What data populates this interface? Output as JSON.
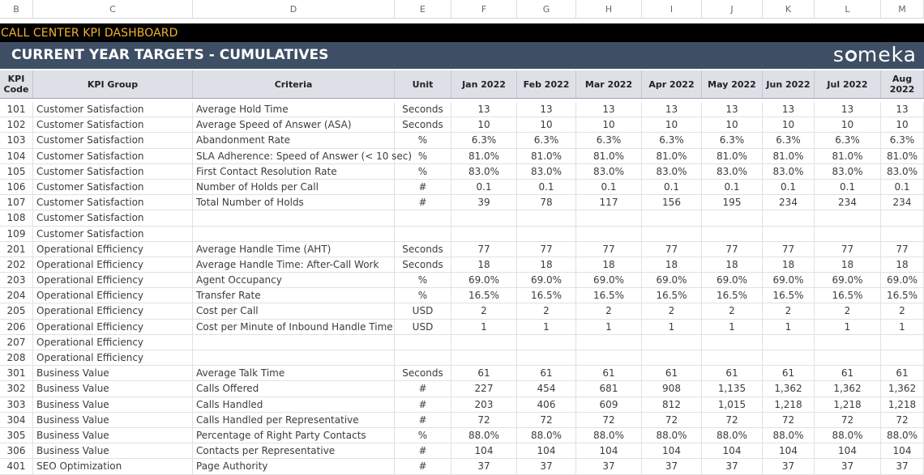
{
  "column_letters": [
    "B",
    "C",
    "D",
    "E",
    "F",
    "G",
    "H",
    "I",
    "J",
    "K",
    "L",
    "M"
  ],
  "banner": {
    "title": "CALL CENTER KPI DASHBOARD",
    "title_color": "#f2b329"
  },
  "section": {
    "title": "CURRENT YEAR TARGETS - CUMULATIVES",
    "logo_pre": "s",
    "logo_post": "meka",
    "bg": "#3e4e64"
  },
  "table": {
    "headers": {
      "code": "KPI Code",
      "group": "KPI Group",
      "criteria": "Criteria",
      "unit": "Unit",
      "months": [
        "Jan 2022",
        "Feb 2022",
        "Mar 2022",
        "Apr 2022",
        "May 2022",
        "Jun 2022",
        "Jul 2022",
        "Aug 2022"
      ]
    },
    "rows": [
      {
        "code": "101",
        "group": "Customer Satisfaction",
        "criteria": "Average Hold Time",
        "unit": "Seconds",
        "values": [
          "13",
          "13",
          "13",
          "13",
          "13",
          "13",
          "13",
          "13"
        ]
      },
      {
        "code": "102",
        "group": "Customer Satisfaction",
        "criteria": "Average Speed of Answer (ASA)",
        "unit": "Seconds",
        "values": [
          "10",
          "10",
          "10",
          "10",
          "10",
          "10",
          "10",
          "10"
        ]
      },
      {
        "code": "103",
        "group": "Customer Satisfaction",
        "criteria": "Abandonment Rate",
        "unit": "%",
        "values": [
          "6.3%",
          "6.3%",
          "6.3%",
          "6.3%",
          "6.3%",
          "6.3%",
          "6.3%",
          "6.3%"
        ]
      },
      {
        "code": "104",
        "group": "Customer Satisfaction",
        "criteria": "SLA Adherence: Speed of Answer (< 10 sec)",
        "unit": "%",
        "values": [
          "81.0%",
          "81.0%",
          "81.0%",
          "81.0%",
          "81.0%",
          "81.0%",
          "81.0%",
          "81.0%"
        ]
      },
      {
        "code": "105",
        "group": "Customer Satisfaction",
        "criteria": "First Contact Resolution Rate",
        "unit": "%",
        "values": [
          "83.0%",
          "83.0%",
          "83.0%",
          "83.0%",
          "83.0%",
          "83.0%",
          "83.0%",
          "83.0%"
        ]
      },
      {
        "code": "106",
        "group": "Customer Satisfaction",
        "criteria": "Number of Holds per Call",
        "unit": "#",
        "values": [
          "0.1",
          "0.1",
          "0.1",
          "0.1",
          "0.1",
          "0.1",
          "0.1",
          "0.1"
        ]
      },
      {
        "code": "107",
        "group": "Customer Satisfaction",
        "criteria": "Total Number of Holds",
        "unit": "#",
        "values": [
          "39",
          "78",
          "117",
          "156",
          "195",
          "234",
          "234",
          "234"
        ]
      },
      {
        "code": "108",
        "group": "Customer Satisfaction",
        "criteria": "",
        "unit": "",
        "values": [
          "",
          "",
          "",
          "",
          "",
          "",
          "",
          ""
        ]
      },
      {
        "code": "109",
        "group": "Customer Satisfaction",
        "criteria": "",
        "unit": "",
        "values": [
          "",
          "",
          "",
          "",
          "",
          "",
          "",
          ""
        ]
      },
      {
        "code": "201",
        "group": "Operational Efficiency",
        "criteria": "Average Handle Time (AHT)",
        "unit": "Seconds",
        "values": [
          "77",
          "77",
          "77",
          "77",
          "77",
          "77",
          "77",
          "77"
        ]
      },
      {
        "code": "202",
        "group": "Operational Efficiency",
        "criteria": "Average Handle Time: After-Call Work",
        "unit": "Seconds",
        "values": [
          "18",
          "18",
          "18",
          "18",
          "18",
          "18",
          "18",
          "18"
        ]
      },
      {
        "code": "203",
        "group": "Operational Efficiency",
        "criteria": "Agent Occupancy",
        "unit": "%",
        "values": [
          "69.0%",
          "69.0%",
          "69.0%",
          "69.0%",
          "69.0%",
          "69.0%",
          "69.0%",
          "69.0%"
        ]
      },
      {
        "code": "204",
        "group": "Operational Efficiency",
        "criteria": "Transfer Rate",
        "unit": "%",
        "values": [
          "16.5%",
          "16.5%",
          "16.5%",
          "16.5%",
          "16.5%",
          "16.5%",
          "16.5%",
          "16.5%"
        ]
      },
      {
        "code": "205",
        "group": "Operational Efficiency",
        "criteria": "Cost per Call",
        "unit": "USD",
        "values": [
          "2",
          "2",
          "2",
          "2",
          "2",
          "2",
          "2",
          "2"
        ]
      },
      {
        "code": "206",
        "group": "Operational Efficiency",
        "criteria": "Cost per Minute of Inbound Handle Time",
        "unit": "USD",
        "values": [
          "1",
          "1",
          "1",
          "1",
          "1",
          "1",
          "1",
          "1"
        ]
      },
      {
        "code": "207",
        "group": "Operational Efficiency",
        "criteria": "",
        "unit": "",
        "values": [
          "",
          "",
          "",
          "",
          "",
          "",
          "",
          ""
        ]
      },
      {
        "code": "208",
        "group": "Operational Efficiency",
        "criteria": "",
        "unit": "",
        "values": [
          "",
          "",
          "",
          "",
          "",
          "",
          "",
          ""
        ]
      },
      {
        "code": "301",
        "group": "Business Value",
        "criteria": "Average Talk Time",
        "unit": "Seconds",
        "values": [
          "61",
          "61",
          "61",
          "61",
          "61",
          "61",
          "61",
          "61"
        ]
      },
      {
        "code": "302",
        "group": "Business Value",
        "criteria": "Calls Offered",
        "unit": "#",
        "values": [
          "227",
          "454",
          "681",
          "908",
          "1,135",
          "1,362",
          "1,362",
          "1,362"
        ]
      },
      {
        "code": "303",
        "group": "Business Value",
        "criteria": "Calls Handled",
        "unit": "#",
        "values": [
          "203",
          "406",
          "609",
          "812",
          "1,015",
          "1,218",
          "1,218",
          "1,218"
        ]
      },
      {
        "code": "304",
        "group": "Business Value",
        "criteria": "Calls Handled per Representative",
        "unit": "#",
        "values": [
          "72",
          "72",
          "72",
          "72",
          "72",
          "72",
          "72",
          "72"
        ]
      },
      {
        "code": "305",
        "group": "Business Value",
        "criteria": "Percentage of Right Party Contacts",
        "unit": "%",
        "values": [
          "88.0%",
          "88.0%",
          "88.0%",
          "88.0%",
          "88.0%",
          "88.0%",
          "88.0%",
          "88.0%"
        ]
      },
      {
        "code": "306",
        "group": "Business Value",
        "criteria": "Contacts per Representative",
        "unit": "#",
        "values": [
          "104",
          "104",
          "104",
          "104",
          "104",
          "104",
          "104",
          "104"
        ]
      },
      {
        "code": "401",
        "group": "SEO Optimization",
        "criteria": "Page Authority",
        "unit": "#",
        "values": [
          "37",
          "37",
          "37",
          "37",
          "37",
          "37",
          "37",
          "37"
        ]
      }
    ]
  }
}
